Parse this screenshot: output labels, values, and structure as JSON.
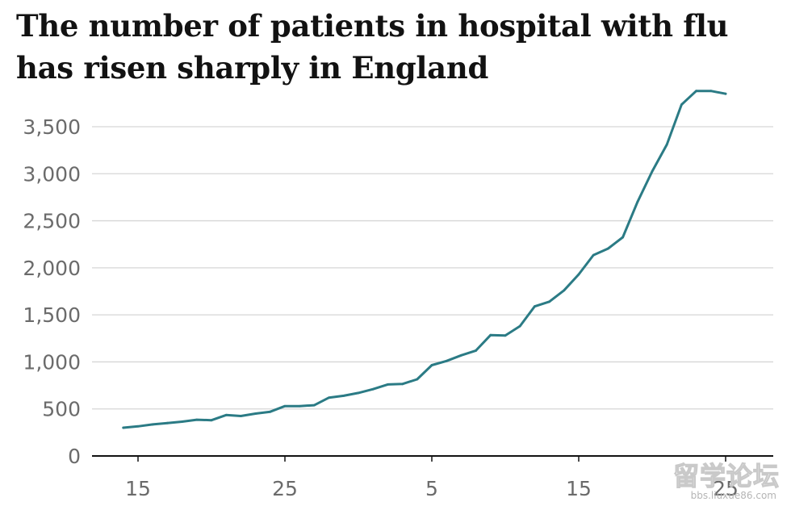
{
  "chart_data": {
    "type": "line",
    "title_lines": [
      "The number of patients in hospital with flu",
      "has risen sharply in England"
    ],
    "xlabel": "",
    "ylabel": "",
    "ylim": [
      0,
      3900
    ],
    "yticks": [
      0,
      500,
      1000,
      1500,
      2000,
      2500,
      3000,
      3500
    ],
    "ytick_labels": [
      "0",
      "500",
      "1,000",
      "1,500",
      "2,000",
      "2,500",
      "3,000",
      "3,500"
    ],
    "xticks": [
      {
        "day": 0,
        "label": "15"
      },
      {
        "day": 10,
        "label": "25"
      },
      {
        "day": 20,
        "label": "5"
      },
      {
        "day": 30,
        "label": "15"
      },
      {
        "day": 40,
        "label": "25"
      }
    ],
    "grid": true,
    "line_color": "#2b7b85",
    "series": [
      {
        "x": [
          -1,
          0,
          1,
          2,
          3,
          4,
          5,
          6,
          7,
          8,
          9,
          10,
          11,
          12,
          13,
          14,
          15,
          16,
          17,
          18,
          19,
          20,
          21,
          22,
          23,
          24,
          25,
          26,
          27,
          28,
          29,
          30,
          31,
          32,
          33,
          34,
          35,
          36,
          37,
          38,
          39,
          40
        ],
        "values": [
          300,
          315,
          335,
          350,
          365,
          385,
          380,
          435,
          425,
          450,
          470,
          530,
          530,
          540,
          620,
          640,
          670,
          710,
          760,
          765,
          815,
          965,
          1010,
          1070,
          1120,
          1285,
          1280,
          1380,
          1590,
          1640,
          1760,
          1930,
          2135,
          2205,
          2325,
          2700,
          3025,
          3310,
          3735,
          3880,
          3880,
          3850
        ]
      }
    ]
  },
  "watermark": {
    "main": "留学论坛",
    "sub": "bbs.liuxue86.com"
  }
}
